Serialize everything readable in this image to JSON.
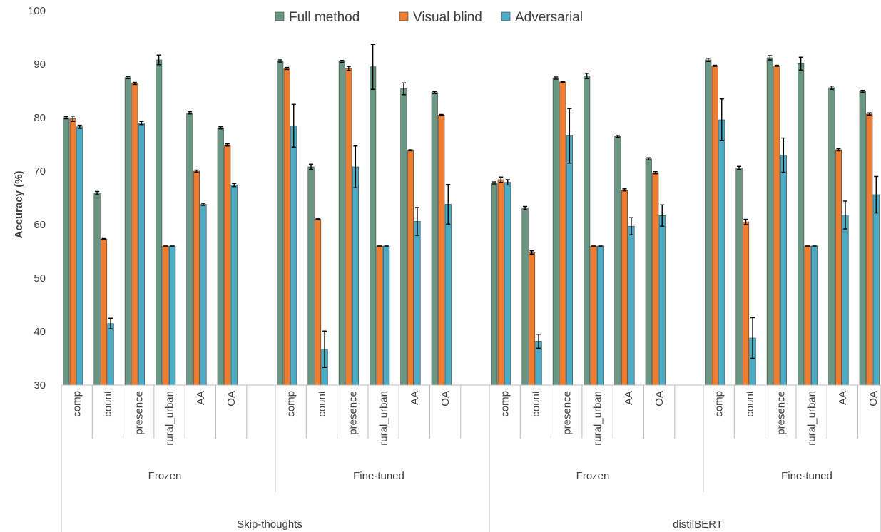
{
  "chart_data": {
    "type": "bar",
    "title": "",
    "xlabel": "",
    "ylabel": "Accuracy (%)",
    "ylim": [
      30,
      100
    ],
    "yticks": [
      30,
      40,
      50,
      60,
      70,
      80,
      90,
      100
    ],
    "grid": false,
    "legend_position": "top",
    "outer_groups": [
      "Skip-thoughts",
      "distilBERT"
    ],
    "inner_groups": [
      "Frozen",
      "Fine-tuned",
      "Frozen",
      "Fine-tuned"
    ],
    "categories": [
      "comp",
      "count",
      "presence",
      "rural_urban",
      "AA",
      "OA"
    ],
    "colors": {
      "Full method": "#6a9784",
      "Visual blind": "#ed7d31",
      "Adversarial": "#4bacc6"
    },
    "series": [
      {
        "name": "Full method",
        "values": [
          [
            80.0,
            65.9,
            87.5,
            90.8,
            80.9,
            78.1
          ],
          [
            90.6,
            70.8,
            90.5,
            89.5,
            85.4,
            84.7
          ],
          [
            67.8,
            63.1,
            87.4,
            87.8,
            76.5,
            72.3
          ],
          [
            90.8,
            70.6,
            91.2,
            90.1,
            85.6,
            84.9
          ]
        ],
        "errors": [
          [
            0.2,
            0.3,
            0.2,
            0.9,
            0.2,
            0.2
          ],
          [
            0.2,
            0.5,
            0.2,
            4.2,
            1.1,
            0.2
          ],
          [
            0.2,
            0.3,
            0.2,
            0.5,
            0.2,
            0.2
          ],
          [
            0.3,
            0.3,
            0.4,
            1.2,
            0.3,
            0.2
          ]
        ]
      },
      {
        "name": "Visual blind",
        "values": [
          [
            79.8,
            57.3,
            86.4,
            56.0,
            70.0,
            74.9
          ],
          [
            89.2,
            61.0,
            89.2,
            56.0,
            73.9,
            80.5
          ],
          [
            68.4,
            54.8,
            86.7,
            56.0,
            66.5,
            69.7
          ],
          [
            89.7,
            60.5,
            89.7,
            56.0,
            74.0,
            80.7
          ]
        ],
        "errors": [
          [
            0.5,
            0.1,
            0.2,
            0.0,
            0.2,
            0.2
          ],
          [
            0.2,
            0.1,
            0.4,
            0.0,
            0.1,
            0.1
          ],
          [
            0.5,
            0.3,
            0.1,
            0.0,
            0.2,
            0.2
          ],
          [
            0.1,
            0.5,
            0.1,
            0.0,
            0.2,
            0.2
          ]
        ]
      },
      {
        "name": "Adversarial",
        "values": [
          [
            78.3,
            41.5,
            79.0,
            56.0,
            63.8,
            67.4
          ],
          [
            78.5,
            36.7,
            70.8,
            56.0,
            60.6,
            63.8
          ],
          [
            67.9,
            38.2,
            76.6,
            56.0,
            59.7,
            61.7
          ],
          [
            79.6,
            38.8,
            73.0,
            56.0,
            61.8,
            65.6
          ]
        ],
        "errors": [
          [
            0.3,
            1.0,
            0.3,
            0.0,
            0.2,
            0.3
          ],
          [
            4.0,
            3.4,
            3.9,
            0.0,
            2.6,
            3.7
          ],
          [
            0.5,
            1.3,
            5.1,
            0.0,
            1.6,
            2.0
          ],
          [
            3.9,
            3.8,
            3.2,
            0.0,
            2.6,
            3.4
          ]
        ]
      }
    ]
  }
}
